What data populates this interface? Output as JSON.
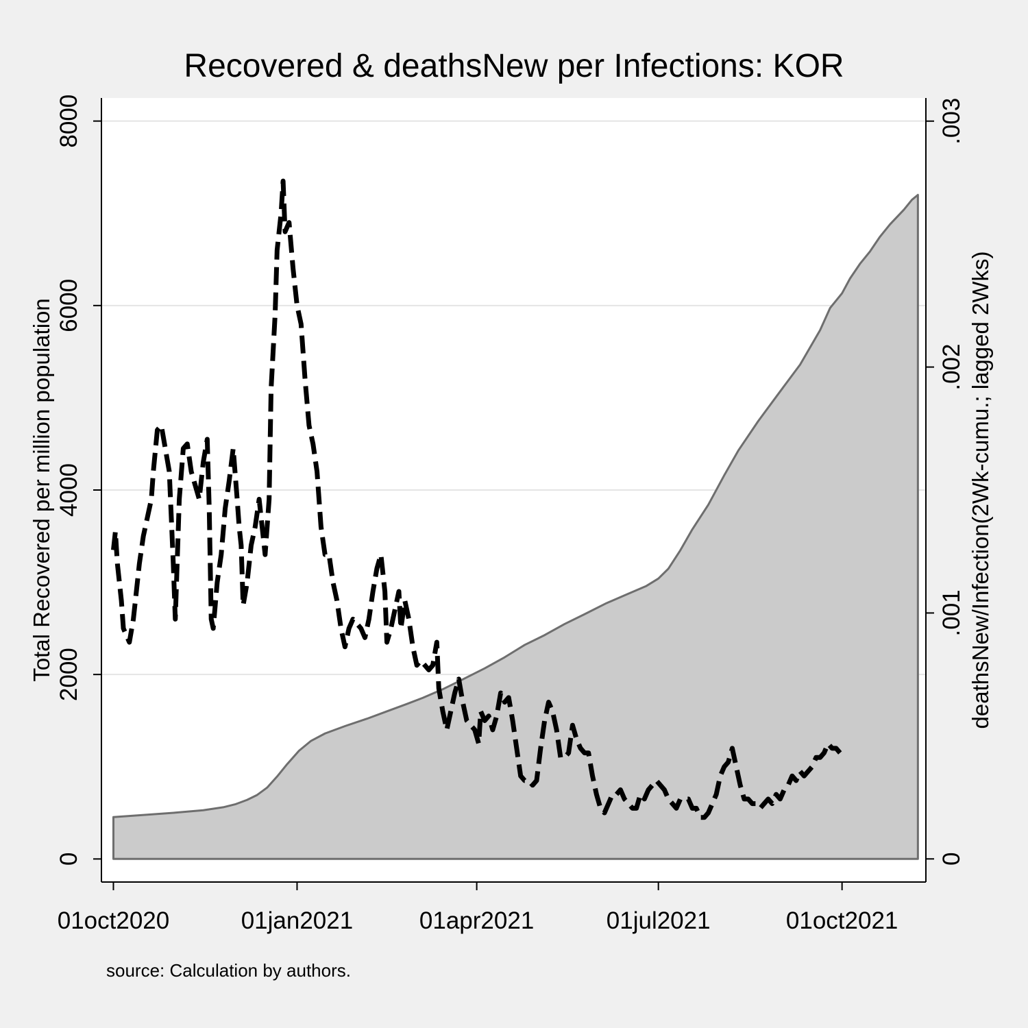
{
  "chart_data": {
    "type": "area",
    "title": "Recovered & deathsNew per Infections: KOR",
    "note": "source: Calculation by authors.",
    "xlabel": "",
    "ylabel": "Total Recovered per million population",
    "ylabel_right": "deathsNew/Infection(2Wk-cumu.; lagged 2Wks)",
    "x_ticks": [
      "01oct2020",
      "01jan2021",
      "01apr2021",
      "01jul2021",
      "01oct2021"
    ],
    "x_range": [
      "2020-10-01",
      "2021-11-08"
    ],
    "y_ticks": [
      "0",
      "2000",
      "4000",
      "6000",
      "8000"
    ],
    "ylim": [
      -250,
      8250
    ],
    "y_ticks_right": [
      "0",
      ".001",
      ".002",
      ".003"
    ],
    "ylim_right": [
      -9.4e-05,
      0.003094
    ],
    "grid": true,
    "legend": "none",
    "colors": {
      "area_fill": "#cbcbcb",
      "area_line": "#6e6e6e",
      "dashed_line": "#000000",
      "background": "#f0f0f0",
      "plot_bg": "#ffffff",
      "grid": "#e4e4e4"
    },
    "series": [
      {
        "axis": "left",
        "style": "dashed",
        "points": [
          [
            "2020-10-01",
            3350
          ],
          [
            "2020-10-02",
            3550
          ],
          [
            "2020-10-03",
            3200
          ],
          [
            "2020-10-04",
            3000
          ],
          [
            "2020-10-05",
            2800
          ],
          [
            "2020-10-06",
            2500
          ],
          [
            "2020-10-07",
            2450
          ],
          [
            "2020-10-09",
            2350
          ],
          [
            "2020-10-11",
            2600
          ],
          [
            "2020-10-14",
            3200
          ],
          [
            "2020-10-16",
            3500
          ],
          [
            "2020-10-18",
            3700
          ],
          [
            "2020-10-20",
            3900
          ],
          [
            "2020-10-21",
            4200
          ],
          [
            "2020-10-23",
            4650
          ],
          [
            "2020-10-25",
            4700
          ],
          [
            "2020-10-27",
            4450
          ],
          [
            "2020-10-29",
            4200
          ],
          [
            "2020-10-31",
            3200
          ],
          [
            "2020-11-01",
            2600
          ],
          [
            "2020-11-03",
            3900
          ],
          [
            "2020-11-05",
            4450
          ],
          [
            "2020-11-07",
            4500
          ],
          [
            "2020-11-09",
            4200
          ],
          [
            "2020-11-11",
            4050
          ],
          [
            "2020-11-13",
            3900
          ],
          [
            "2020-11-15",
            4300
          ],
          [
            "2020-11-17",
            4550
          ],
          [
            "2020-11-18",
            3800
          ],
          [
            "2020-11-19",
            2600
          ],
          [
            "2020-11-20",
            2500
          ],
          [
            "2020-11-22",
            3000
          ],
          [
            "2020-11-24",
            3300
          ],
          [
            "2020-11-26",
            3800
          ],
          [
            "2020-11-28",
            4100
          ],
          [
            "2020-11-30",
            4450
          ],
          [
            "2020-12-02",
            3900
          ],
          [
            "2020-12-03",
            3600
          ],
          [
            "2020-12-04",
            3400
          ],
          [
            "2020-12-05",
            2750
          ],
          [
            "2020-12-07",
            3000
          ],
          [
            "2020-12-09",
            3400
          ],
          [
            "2020-12-11",
            3600
          ],
          [
            "2020-12-13",
            3900
          ],
          [
            "2020-12-15",
            3500
          ],
          [
            "2020-12-16",
            3300
          ],
          [
            "2020-12-18",
            3900
          ],
          [
            "2020-12-19",
            5100
          ],
          [
            "2020-12-21",
            5900
          ],
          [
            "2020-12-22",
            6600
          ],
          [
            "2020-12-24",
            7000
          ],
          [
            "2020-12-25",
            7350
          ],
          [
            "2020-12-26",
            6800
          ],
          [
            "2020-12-28",
            6900
          ],
          [
            "2020-12-30",
            6400
          ],
          [
            "2021-01-01",
            6000
          ],
          [
            "2021-01-03",
            5800
          ],
          [
            "2021-01-05",
            5200
          ],
          [
            "2021-01-07",
            4700
          ],
          [
            "2021-01-09",
            4500
          ],
          [
            "2021-01-11",
            4200
          ],
          [
            "2021-01-13",
            3600
          ],
          [
            "2021-01-15",
            3300
          ],
          [
            "2021-01-17",
            3300
          ],
          [
            "2021-01-19",
            3000
          ],
          [
            "2021-01-21",
            2800
          ],
          [
            "2021-01-23",
            2500
          ],
          [
            "2021-01-25",
            2300
          ],
          [
            "2021-01-27",
            2500
          ],
          [
            "2021-01-29",
            2600
          ],
          [
            "2021-01-31",
            2550
          ],
          [
            "2021-02-02",
            2500
          ],
          [
            "2021-02-04",
            2400
          ],
          [
            "2021-02-06",
            2600
          ],
          [
            "2021-02-08",
            2900
          ],
          [
            "2021-02-10",
            3150
          ],
          [
            "2021-02-12",
            3300
          ],
          [
            "2021-02-14",
            2900
          ],
          [
            "2021-02-15",
            2350
          ],
          [
            "2021-02-17",
            2500
          ],
          [
            "2021-02-19",
            2700
          ],
          [
            "2021-02-21",
            2900
          ],
          [
            "2021-02-22",
            2500
          ],
          [
            "2021-02-24",
            2800
          ],
          [
            "2021-02-26",
            2600
          ],
          [
            "2021-02-28",
            2300
          ],
          [
            "2021-03-02",
            2100
          ],
          [
            "2021-03-04",
            2150
          ],
          [
            "2021-03-06",
            2100
          ],
          [
            "2021-03-08",
            2050
          ],
          [
            "2021-03-10",
            2100
          ],
          [
            "2021-03-12",
            2350
          ],
          [
            "2021-03-13",
            1850
          ],
          [
            "2021-03-15",
            1600
          ],
          [
            "2021-03-17",
            1400
          ],
          [
            "2021-03-19",
            1600
          ],
          [
            "2021-03-21",
            1800
          ],
          [
            "2021-03-23",
            1950
          ],
          [
            "2021-03-25",
            1700
          ],
          [
            "2021-03-27",
            1500
          ],
          [
            "2021-03-29",
            1450
          ],
          [
            "2021-03-31",
            1400
          ],
          [
            "2021-04-02",
            1250
          ],
          [
            "2021-04-03",
            1600
          ],
          [
            "2021-04-05",
            1500
          ],
          [
            "2021-04-07",
            1550
          ],
          [
            "2021-04-09",
            1400
          ],
          [
            "2021-04-11",
            1550
          ],
          [
            "2021-04-13",
            1800
          ],
          [
            "2021-04-15",
            1700
          ],
          [
            "2021-04-17",
            1750
          ],
          [
            "2021-04-19",
            1500
          ],
          [
            "2021-04-21",
            1200
          ],
          [
            "2021-04-23",
            900
          ],
          [
            "2021-04-25",
            850
          ],
          [
            "2021-04-27",
            850
          ],
          [
            "2021-04-29",
            800
          ],
          [
            "2021-05-01",
            850
          ],
          [
            "2021-05-03",
            1200
          ],
          [
            "2021-05-05",
            1500
          ],
          [
            "2021-05-07",
            1700
          ],
          [
            "2021-05-09",
            1600
          ],
          [
            "2021-05-11",
            1400
          ],
          [
            "2021-05-13",
            1100
          ],
          [
            "2021-05-15",
            1100
          ],
          [
            "2021-05-17",
            1150
          ],
          [
            "2021-05-19",
            1450
          ],
          [
            "2021-05-21",
            1300
          ],
          [
            "2021-05-23",
            1200
          ],
          [
            "2021-05-25",
            1150
          ],
          [
            "2021-05-27",
            1150
          ],
          [
            "2021-05-29",
            900
          ],
          [
            "2021-05-31",
            700
          ],
          [
            "2021-06-02",
            550
          ],
          [
            "2021-06-04",
            500
          ],
          [
            "2021-06-06",
            600
          ],
          [
            "2021-06-08",
            700
          ],
          [
            "2021-06-10",
            700
          ],
          [
            "2021-06-12",
            750
          ],
          [
            "2021-06-14",
            650
          ],
          [
            "2021-06-16",
            600
          ],
          [
            "2021-06-18",
            550
          ],
          [
            "2021-06-20",
            550
          ],
          [
            "2021-06-22",
            700
          ],
          [
            "2021-06-24",
            650
          ],
          [
            "2021-06-26",
            750
          ],
          [
            "2021-06-28",
            800
          ],
          [
            "2021-06-30",
            850
          ],
          [
            "2021-07-02",
            800
          ],
          [
            "2021-07-04",
            750
          ],
          [
            "2021-07-06",
            650
          ],
          [
            "2021-07-08",
            600
          ],
          [
            "2021-07-10",
            550
          ],
          [
            "2021-07-12",
            650
          ],
          [
            "2021-07-14",
            650
          ],
          [
            "2021-07-16",
            650
          ],
          [
            "2021-07-18",
            550
          ],
          [
            "2021-07-20",
            550
          ],
          [
            "2021-07-22",
            450
          ],
          [
            "2021-07-24",
            450
          ],
          [
            "2021-07-26",
            500
          ],
          [
            "2021-07-28",
            600
          ],
          [
            "2021-07-30",
            700
          ],
          [
            "2021-08-01",
            900
          ],
          [
            "2021-08-03",
            1000
          ],
          [
            "2021-08-05",
            1050
          ],
          [
            "2021-08-07",
            1200
          ],
          [
            "2021-08-09",
            1000
          ],
          [
            "2021-08-11",
            800
          ],
          [
            "2021-08-13",
            650
          ],
          [
            "2021-08-15",
            650
          ],
          [
            "2021-08-17",
            600
          ],
          [
            "2021-08-19",
            600
          ],
          [
            "2021-08-21",
            550
          ],
          [
            "2021-08-23",
            600
          ],
          [
            "2021-08-25",
            650
          ],
          [
            "2021-08-27",
            600
          ],
          [
            "2021-08-29",
            700
          ],
          [
            "2021-08-31",
            650
          ],
          [
            "2021-09-02",
            750
          ],
          [
            "2021-09-04",
            800
          ],
          [
            "2021-09-06",
            900
          ],
          [
            "2021-09-08",
            850
          ],
          [
            "2021-09-10",
            950
          ],
          [
            "2021-09-12",
            900
          ],
          [
            "2021-09-14",
            950
          ],
          [
            "2021-09-16",
            1000
          ],
          [
            "2021-09-18",
            1100
          ],
          [
            "2021-09-20",
            1100
          ],
          [
            "2021-09-22",
            1150
          ],
          [
            "2021-09-24",
            1250
          ],
          [
            "2021-09-26",
            1200
          ],
          [
            "2021-09-28",
            1200
          ],
          [
            "2021-09-30",
            1150
          ]
        ]
      },
      {
        "axis": "right",
        "style": "area",
        "points": [
          [
            "2020-10-01",
            0.00017
          ],
          [
            "2020-10-15",
            0.000178
          ],
          [
            "2020-11-01",
            0.000188
          ],
          [
            "2020-11-15",
            0.000198
          ],
          [
            "2020-11-25",
            0.00021
          ],
          [
            "2020-12-01",
            0.000222
          ],
          [
            "2020-12-07",
            0.00024
          ],
          [
            "2020-12-12",
            0.00026
          ],
          [
            "2020-12-17",
            0.00029
          ],
          [
            "2020-12-22",
            0.000335
          ],
          [
            "2020-12-27",
            0.000385
          ],
          [
            "2021-01-02",
            0.00044
          ],
          [
            "2021-01-08",
            0.00048
          ],
          [
            "2021-01-15",
            0.00051
          ],
          [
            "2021-01-25",
            0.00054
          ],
          [
            "2021-02-05",
            0.00057
          ],
          [
            "2021-02-15",
            0.0006
          ],
          [
            "2021-02-25",
            0.00063
          ],
          [
            "2021-03-05",
            0.000655
          ],
          [
            "2021-03-15",
            0.00069
          ],
          [
            "2021-03-25",
            0.00073
          ],
          [
            "2021-04-05",
            0.000775
          ],
          [
            "2021-04-15",
            0.00082
          ],
          [
            "2021-04-25",
            0.00087
          ],
          [
            "2021-05-05",
            0.00091
          ],
          [
            "2021-05-15",
            0.000955
          ],
          [
            "2021-05-25",
            0.000995
          ],
          [
            "2021-06-05",
            0.00104
          ],
          [
            "2021-06-15",
            0.001075
          ],
          [
            "2021-06-25",
            0.00111
          ],
          [
            "2021-07-01",
            0.00114
          ],
          [
            "2021-07-06",
            0.00118
          ],
          [
            "2021-07-12",
            0.001255
          ],
          [
            "2021-07-18",
            0.00134
          ],
          [
            "2021-07-26",
            0.00144
          ],
          [
            "2021-08-03",
            0.00156
          ],
          [
            "2021-08-10",
            0.00166
          ],
          [
            "2021-08-20",
            0.00178
          ],
          [
            "2021-08-30",
            0.00189
          ],
          [
            "2021-09-10",
            0.00201
          ],
          [
            "2021-09-15",
            0.00208
          ],
          [
            "2021-09-20",
            0.00215
          ],
          [
            "2021-09-25",
            0.00224
          ],
          [
            "2021-10-01",
            0.0023
          ],
          [
            "2021-10-05",
            0.00236
          ],
          [
            "2021-10-10",
            0.00242
          ],
          [
            "2021-10-15",
            0.00247
          ],
          [
            "2021-10-20",
            0.00253
          ],
          [
            "2021-10-25",
            0.00258
          ],
          [
            "2021-11-01",
            0.00264
          ],
          [
            "2021-11-05",
            0.00268
          ],
          [
            "2021-11-08",
            0.0027
          ]
        ]
      }
    ]
  }
}
